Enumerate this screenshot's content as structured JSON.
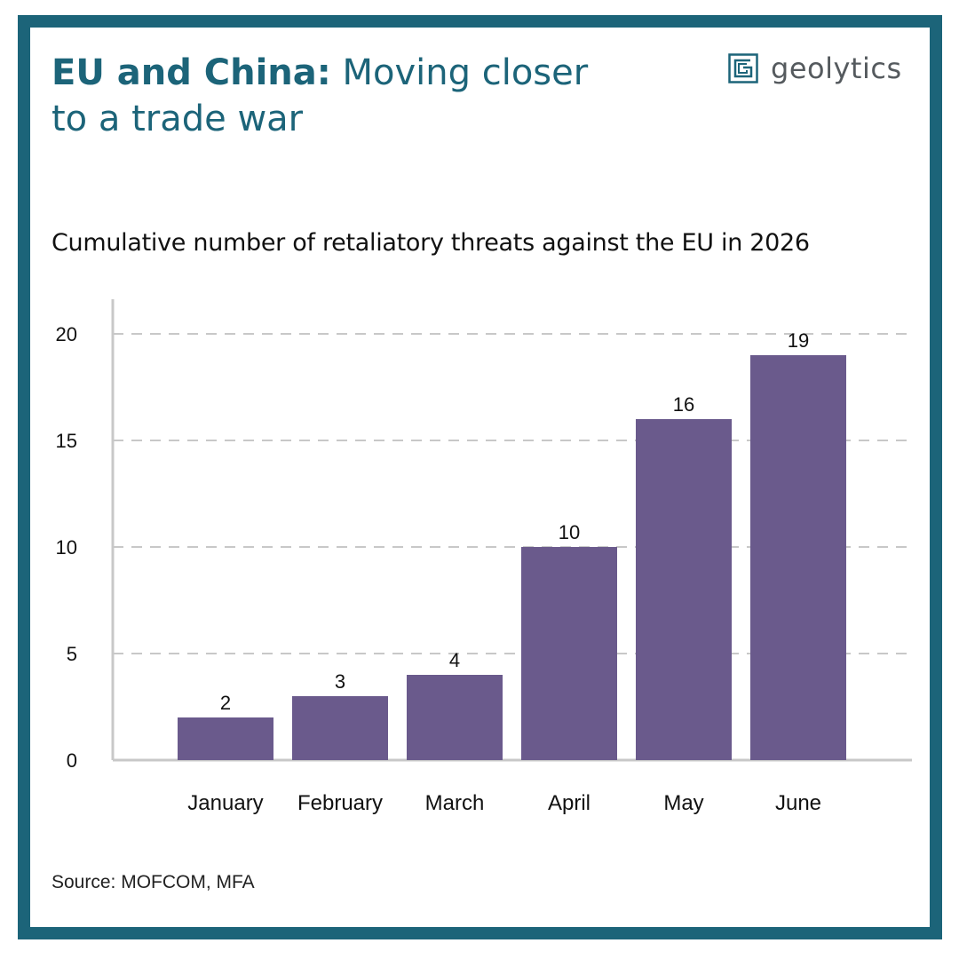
{
  "header": {
    "title_bold": "EU and China:",
    "title_rest": "Moving closer to a trade war",
    "logo_text": "geolytics",
    "logo_icon": "geolytics-g-logo-icon"
  },
  "chart_data": {
    "type": "bar",
    "title": "Cumulative number of retaliatory threats against the EU in 2026",
    "categories": [
      "January",
      "February",
      "March",
      "April",
      "May",
      "June"
    ],
    "values": [
      2,
      3,
      4,
      10,
      16,
      19
    ],
    "data_labels": [
      "2",
      "3",
      "4",
      "10",
      "16",
      "19"
    ],
    "y_ticks": [
      "0",
      "5",
      "10",
      "15",
      "20"
    ],
    "ylim": [
      0,
      20
    ],
    "grid": true,
    "legend": "none",
    "bar_color": "#6a5a8c"
  },
  "footer": {
    "source": "Source: MOFCOM, MFA"
  },
  "colors": {
    "frame": "#1c6479",
    "title": "#1c6479",
    "grid": "#c8c8c8",
    "axis": "#c8c8c8"
  }
}
